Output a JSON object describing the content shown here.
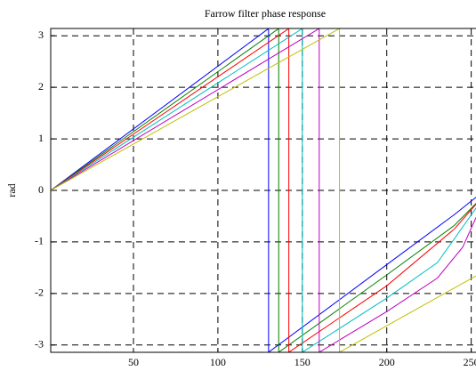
{
  "chart_data": {
    "type": "line",
    "title": "Farrow filter phase response",
    "y_label": "rad",
    "xlim": [
      1,
      256
    ],
    "ylim": [
      -3.1416,
      3.1416
    ],
    "xticks": [
      50,
      100,
      150,
      200,
      250
    ],
    "yticks": [
      -3,
      -2,
      -1,
      0,
      1,
      2,
      3
    ],
    "grid": true,
    "series": [
      {
        "color": "#0000ff",
        "x": [
          1,
          130,
          130,
          200,
          240,
          256
        ],
        "values": [
          0,
          3.14,
          -3.14,
          -1.44,
          -0.47,
          -0.05
        ]
      },
      {
        "color": "#008000",
        "x": [
          1,
          136,
          136,
          200,
          240,
          256
        ],
        "values": [
          0,
          3.14,
          -3.14,
          -1.64,
          -0.68,
          -0.15
        ]
      },
      {
        "color": "#ff0000",
        "x": [
          1,
          142,
          142,
          200,
          240,
          256
        ],
        "values": [
          0,
          3.14,
          -3.14,
          -1.85,
          -0.75,
          -0.15
        ]
      },
      {
        "color": "#00bfbf",
        "x": [
          1,
          150,
          150,
          200,
          230,
          256
        ],
        "values": [
          0,
          3.14,
          -3.14,
          -2.09,
          -1.4,
          -0.2
        ]
      },
      {
        "color": "#bf00bf",
        "x": [
          1,
          160,
          160,
          200,
          230,
          245,
          256
        ],
        "values": [
          0,
          3.14,
          -3.14,
          -2.35,
          -1.7,
          -1.1,
          -0.3
        ]
      },
      {
        "color": "#bfbf00",
        "x": [
          1,
          172,
          172,
          256
        ],
        "values": [
          0,
          3.14,
          -3.14,
          -1.6
        ]
      }
    ]
  }
}
